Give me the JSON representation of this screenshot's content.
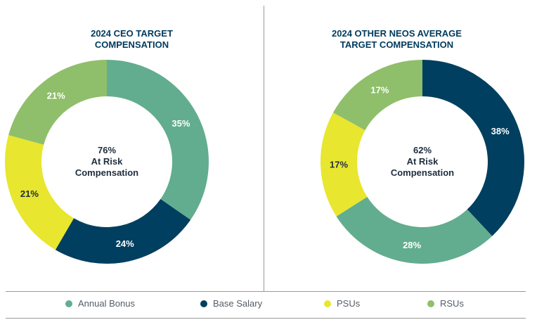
{
  "colors": {
    "annual_bonus": "#62ad8f",
    "base_salary": "#003f5f",
    "psus": "#e8e62e",
    "rsus": "#8fbf6a"
  },
  "legend": [
    {
      "label": "Annual Bonus",
      "color": "#62ad8f"
    },
    {
      "label": "Base Salary",
      "color": "#003f5f"
    },
    {
      "label": "PSUs",
      "color": "#e8e62e"
    },
    {
      "label": "RSUs",
      "color": "#8fbf6a"
    }
  ],
  "chart_data": [
    {
      "type": "pie",
      "title_lines": [
        "2024 CEO TARGET",
        "COMPENSATION"
      ],
      "center_lines": [
        "76%",
        "At Risk",
        "Compensation"
      ],
      "slices": [
        {
          "name": "Annual Bonus",
          "value": 35,
          "label": "35%",
          "color": "#62ad8f",
          "label_color": "#ffffff"
        },
        {
          "name": "Base Salary",
          "value": 24,
          "label": "24%",
          "color": "#003f5f",
          "label_color": "#ffffff"
        },
        {
          "name": "PSUs",
          "value": 21,
          "label": "21%",
          "color": "#e8e62e",
          "label_color": "#1f2d3d"
        },
        {
          "name": "RSUs",
          "value": 21,
          "label": "21%",
          "color": "#8fbf6a",
          "label_color": "#ffffff"
        }
      ]
    },
    {
      "type": "pie",
      "title_lines": [
        "2024 OTHER NEOS AVERAGE",
        "TARGET COMPENSATION"
      ],
      "center_lines": [
        "62%",
        "At Risk",
        "Compensation"
      ],
      "slices": [
        {
          "name": "Base Salary",
          "value": 38,
          "label": "38%",
          "color": "#003f5f",
          "label_color": "#ffffff"
        },
        {
          "name": "Annual Bonus",
          "value": 28,
          "label": "28%",
          "color": "#62ad8f",
          "label_color": "#ffffff"
        },
        {
          "name": "PSUs",
          "value": 17,
          "label": "17%",
          "color": "#e8e62e",
          "label_color": "#1f2d3d"
        },
        {
          "name": "RSUs",
          "value": 17,
          "label": "17%",
          "color": "#8fbf6a",
          "label_color": "#ffffff"
        }
      ]
    }
  ]
}
